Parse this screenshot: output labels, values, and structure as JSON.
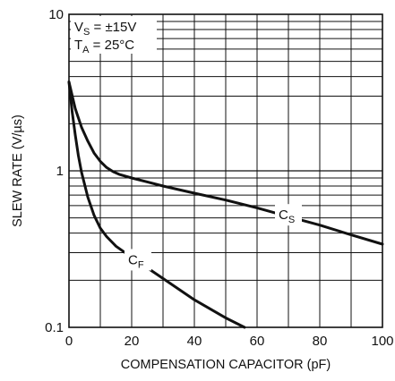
{
  "chart_data": {
    "type": "line",
    "title": "",
    "xlabel": "COMPENSATION CAPACITOR (pF)",
    "ylabel": "SLEW RATE (V/µs)",
    "xlim": [
      0,
      100
    ],
    "ylim": [
      0.1,
      10
    ],
    "y_scale": "log",
    "grid": true,
    "x_ticks": [
      "0",
      "20",
      "40",
      "60",
      "80",
      "100"
    ],
    "y_ticks": [
      "0.1",
      "1",
      "10"
    ],
    "conditions": [
      {
        "main": "V",
        "sub": "S",
        "rest": " = ±15V"
      },
      {
        "main": "T",
        "sub": "A",
        "rest": " = 25°C"
      }
    ],
    "series": [
      {
        "name": "CS",
        "label_main": "C",
        "label_sub": "S",
        "x": [
          0,
          2,
          4,
          6,
          8,
          10,
          12,
          14,
          16,
          20,
          25,
          30,
          40,
          50,
          60,
          70,
          80,
          90,
          100
        ],
        "y": [
          3.7,
          2.5,
          1.9,
          1.55,
          1.3,
          1.15,
          1.05,
          0.99,
          0.95,
          0.9,
          0.85,
          0.8,
          0.72,
          0.65,
          0.58,
          0.51,
          0.45,
          0.39,
          0.34
        ]
      },
      {
        "name": "CF",
        "label_main": "C",
        "label_sub": "F",
        "x": [
          0,
          1,
          2,
          3,
          4,
          6,
          8,
          10,
          12,
          15,
          20,
          25,
          30,
          40,
          50,
          56
        ],
        "y": [
          3.7,
          2.4,
          1.7,
          1.25,
          0.98,
          0.68,
          0.52,
          0.43,
          0.38,
          0.33,
          0.28,
          0.24,
          0.205,
          0.15,
          0.115,
          0.1
        ]
      }
    ]
  }
}
